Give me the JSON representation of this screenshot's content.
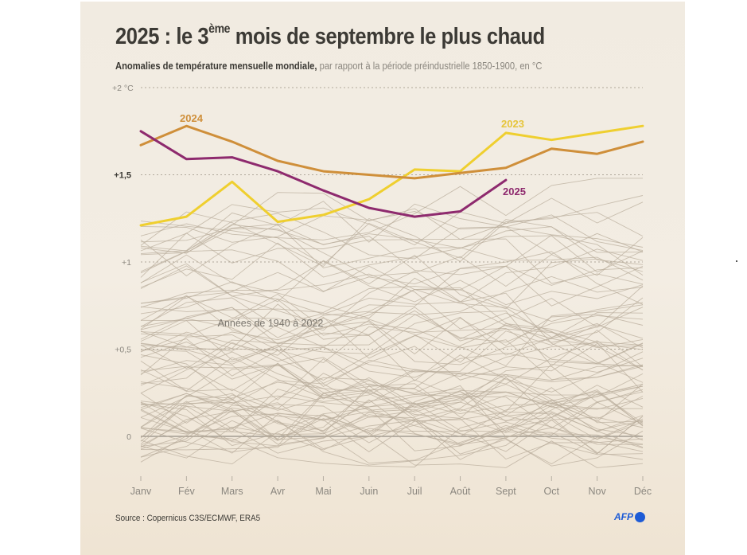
{
  "header": {
    "title_main": "2025 : le 3",
    "title_sup": "ème",
    "title_rest": " mois de septembre le plus chaud",
    "subtitle_bold": "Anomalies de température mensuelle mondiale,",
    "subtitle_rest": " par rapport à la période préindustrielle 1850-1900, en °C"
  },
  "footer": {
    "source": "Source : Copernicus C3S/ECMWF, ERA5",
    "logo_text": "AFP"
  },
  "colors": {
    "y2023": "#efcf2f",
    "y2024": "#cf8f3a",
    "y2025": "#8e2a6e",
    "history": "#b9ad9c",
    "grid": "#b0a89b",
    "axis_text": "#8b877f",
    "background": "#f1ebe1"
  },
  "chart_data": {
    "type": "line",
    "title": "2025 : le 3ème mois de septembre le plus chaud",
    "subtitle": "Anomalies de température mensuelle mondiale, par rapport à la période préindustrielle 1850-1900, en °C",
    "xlabel": "",
    "ylabel": "°C",
    "categories": [
      "Janv",
      "Fév",
      "Mars",
      "Avr",
      "Mai",
      "Juin",
      "Juil",
      "Août",
      "Sept",
      "Oct",
      "Nov",
      "Déc"
    ],
    "ylim": [
      0,
      2
    ],
    "yticks": [
      {
        "value": 2,
        "label": "+2 °C",
        "bold": false
      },
      {
        "value": 1.5,
        "label": "+1,5",
        "bold": true
      },
      {
        "value": 1,
        "label": "+1",
        "bold": false
      },
      {
        "value": 0.5,
        "label": "+0,5",
        "bold": false
      },
      {
        "value": 0,
        "label": "0",
        "bold": false
      }
    ],
    "grid": true,
    "series": [
      {
        "name": "2024",
        "label": "2024",
        "highlight": true,
        "values": [
          1.67,
          1.78,
          1.69,
          1.58,
          1.52,
          1.5,
          1.48,
          1.51,
          1.54,
          1.65,
          1.62,
          1.69
        ]
      },
      {
        "name": "2023",
        "label": "2023",
        "highlight": true,
        "values": [
          1.21,
          1.26,
          1.46,
          1.23,
          1.27,
          1.36,
          1.53,
          1.52,
          1.74,
          1.7,
          1.74,
          1.78
        ]
      },
      {
        "name": "2025",
        "label": "2025",
        "highlight": true,
        "values": [
          1.75,
          1.59,
          1.6,
          1.52,
          1.41,
          1.31,
          1.26,
          1.29,
          1.47
        ]
      }
    ],
    "background_series": {
      "label": "Années de 1940 à 2022",
      "count": 83,
      "range_start": 1940,
      "range_end": 2022,
      "approx_value_range": [
        -0.2,
        1.5
      ]
    },
    "annotations": [
      {
        "text": "2024",
        "series": "2024",
        "near": "Fév"
      },
      {
        "text": "2023",
        "series": "2023",
        "near": "Sept"
      },
      {
        "text": "2025",
        "series": "2025",
        "near": "Sept"
      },
      {
        "text": "Années de 1940 à 2022",
        "near": "Mars-Juin"
      }
    ],
    "legend": "none (inline labels)"
  }
}
